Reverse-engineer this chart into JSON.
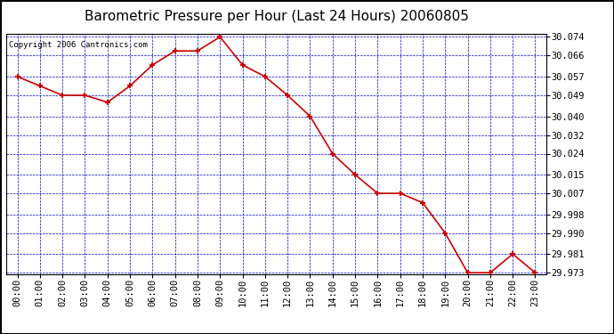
{
  "title": "Barometric Pressure per Hour (Last 24 Hours) 20060805",
  "copyright_text": "Copyright 2006 Cantronics.com",
  "hours": [
    "00:00",
    "01:00",
    "02:00",
    "03:00",
    "04:00",
    "05:00",
    "06:00",
    "07:00",
    "08:00",
    "09:00",
    "10:00",
    "11:00",
    "12:00",
    "13:00",
    "14:00",
    "15:00",
    "16:00",
    "17:00",
    "18:00",
    "19:00",
    "20:00",
    "21:00",
    "22:00",
    "23:00"
  ],
  "values": [
    30.057,
    30.053,
    30.049,
    30.049,
    30.046,
    30.053,
    30.062,
    30.068,
    30.068,
    30.074,
    30.062,
    30.057,
    30.049,
    30.04,
    30.024,
    30.015,
    30.007,
    30.007,
    30.003,
    29.99,
    29.973,
    29.973,
    29.981,
    29.973
  ],
  "line_color": "#cc0000",
  "marker_color": "#cc0000",
  "bg_color": "#ffffff",
  "plot_bg_color": "#ffffff",
  "grid_color": "#0000cc",
  "title_fontsize": 11,
  "copyright_fontsize": 6.5,
  "tick_label_fontsize": 7.5,
  "ytick_labels": [
    30.074,
    30.066,
    30.057,
    30.049,
    30.04,
    30.032,
    30.024,
    30.015,
    30.007,
    29.998,
    29.99,
    29.981,
    29.973
  ],
  "ylim_min": 29.9725,
  "ylim_max": 30.0755,
  "outer_border_color": "#000000"
}
